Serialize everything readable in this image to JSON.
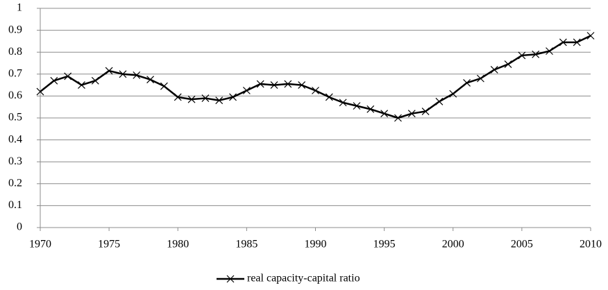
{
  "chart_data": {
    "type": "line",
    "x": [
      1970,
      1971,
      1972,
      1973,
      1974,
      1975,
      1976,
      1977,
      1978,
      1979,
      1980,
      1981,
      1982,
      1983,
      1984,
      1985,
      1986,
      1987,
      1988,
      1989,
      1990,
      1991,
      1992,
      1993,
      1994,
      1995,
      1996,
      1997,
      1998,
      1999,
      2000,
      2001,
      2002,
      2003,
      2004,
      2005,
      2006,
      2007,
      2008,
      2009,
      2010
    ],
    "series": [
      {
        "name": "real capacity-capital ratio",
        "color": "#000000",
        "values": [
          0.62,
          0.67,
          0.69,
          0.65,
          0.67,
          0.715,
          0.7,
          0.695,
          0.675,
          0.645,
          0.595,
          0.585,
          0.59,
          0.58,
          0.595,
          0.625,
          0.655,
          0.65,
          0.655,
          0.65,
          0.625,
          0.595,
          0.57,
          0.555,
          0.54,
          0.52,
          0.5,
          0.52,
          0.53,
          0.575,
          0.61,
          0.66,
          0.68,
          0.72,
          0.745,
          0.785,
          0.79,
          0.805,
          0.845,
          0.845,
          0.875
        ]
      }
    ],
    "xlim": [
      1970,
      2010
    ],
    "xticks": [
      1970,
      1975,
      1980,
      1985,
      1990,
      1995,
      2000,
      2005,
      2010
    ],
    "ylim": [
      0,
      1
    ],
    "yticks": [
      0,
      0.1,
      0.2,
      0.3,
      0.4,
      0.5,
      0.6,
      0.7,
      0.8,
      0.9,
      1
    ],
    "grid": true,
    "legend": "bottom",
    "marker": "x"
  }
}
